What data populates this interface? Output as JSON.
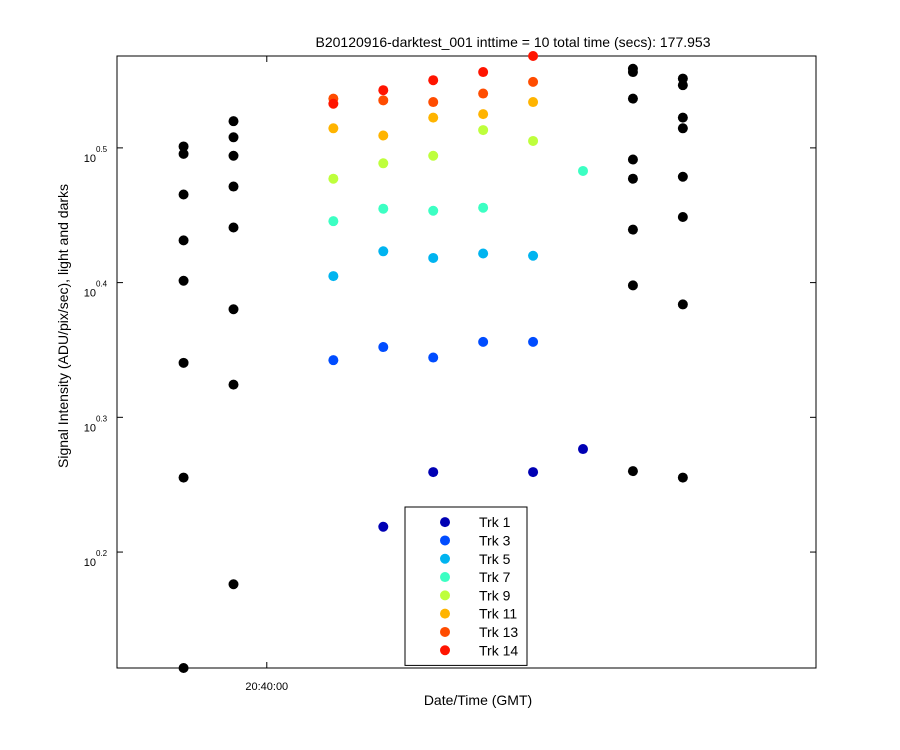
{
  "chart_data": {
    "type": "scatter",
    "title": "B20120916-darktest_001 inttime = 10 total time (secs): 177.953",
    "xlabel": "Date/Time (GMT)",
    "ylabel": "Signal Intensity (ADU/pix/sec), light and darks",
    "yscale": "log",
    "ylim": [
      1.3,
      3.7
    ],
    "xlim": [
      "20:39:33",
      "20:41:39"
    ],
    "x_ticks": [
      {
        "value": "20:40:00",
        "label": "20:40:00"
      }
    ],
    "y_ticks": [
      {
        "value": 1.5849,
        "base": "10",
        "exp": "0.2"
      },
      {
        "value": 1.9953,
        "base": "10",
        "exp": "0.3"
      },
      {
        "value": 2.5119,
        "base": "10",
        "exp": "0.4"
      },
      {
        "value": 3.1623,
        "base": "10",
        "exp": "0.5"
      }
    ],
    "grid": false,
    "legend_position": "bottom-center",
    "series": [
      {
        "name": "Trk 1",
        "color": "#0000b4",
        "points": [
          [
            "20:40:21",
            1.655
          ],
          [
            "20:40:30",
            1.817
          ],
          [
            "20:40:48",
            1.817
          ],
          [
            "20:40:57",
            1.89
          ]
        ]
      },
      {
        "name": "Trk 3",
        "color": "#004cff",
        "points": [
          [
            "20:40:12",
            2.2
          ],
          [
            "20:40:21",
            2.25
          ],
          [
            "20:40:30",
            2.21
          ],
          [
            "20:40:39",
            2.27
          ],
          [
            "20:40:48",
            2.27
          ]
        ]
      },
      {
        "name": "Trk 5",
        "color": "#00b4f0",
        "points": [
          [
            "20:40:12",
            2.54
          ],
          [
            "20:40:21",
            2.65
          ],
          [
            "20:40:30",
            2.62
          ],
          [
            "20:40:39",
            2.64
          ],
          [
            "20:40:48",
            2.63
          ]
        ]
      },
      {
        "name": "Trk 7",
        "color": "#3cffc3",
        "points": [
          [
            "20:40:12",
            2.79
          ],
          [
            "20:40:21",
            2.85
          ],
          [
            "20:40:30",
            2.84
          ],
          [
            "20:40:39",
            2.855
          ],
          [
            "20:40:57",
            3.04
          ]
        ]
      },
      {
        "name": "Trk 9",
        "color": "#beff3c",
        "points": [
          [
            "20:40:12",
            3.0
          ],
          [
            "20:40:21",
            3.08
          ],
          [
            "20:40:30",
            3.12
          ],
          [
            "20:40:39",
            3.26
          ],
          [
            "20:40:48",
            3.2
          ]
        ]
      },
      {
        "name": "Trk 11",
        "color": "#ffb400",
        "points": [
          [
            "20:40:12",
            3.27
          ],
          [
            "20:40:21",
            3.23
          ],
          [
            "20:40:30",
            3.33
          ],
          [
            "20:40:39",
            3.35
          ],
          [
            "20:40:48",
            3.42
          ]
        ]
      },
      {
        "name": "Trk 13",
        "color": "#ff4c00",
        "points": [
          [
            "20:40:12",
            3.44
          ],
          [
            "20:40:21",
            3.43
          ],
          [
            "20:40:30",
            3.42
          ],
          [
            "20:40:39",
            3.47
          ],
          [
            "20:40:48",
            3.54
          ]
        ]
      },
      {
        "name": "Trk 14",
        "color": "#ff1400",
        "points": [
          [
            "20:40:12",
            3.41
          ],
          [
            "20:40:21",
            3.49
          ],
          [
            "20:40:30",
            3.55
          ],
          [
            "20:40:39",
            3.6
          ],
          [
            "20:40:48",
            3.7
          ]
        ]
      },
      {
        "name": "",
        "color": "#000000",
        "points": [
          [
            "20:39:45",
            1.3
          ],
          [
            "20:39:45",
            1.8
          ],
          [
            "20:39:45",
            2.19
          ],
          [
            "20:39:45",
            2.52
          ],
          [
            "20:39:45",
            2.7
          ],
          [
            "20:39:45",
            2.92
          ],
          [
            "20:39:45",
            3.13
          ],
          [
            "20:39:45",
            3.17
          ],
          [
            "20:39:54",
            1.5
          ],
          [
            "20:39:54",
            2.11
          ],
          [
            "20:39:54",
            2.4
          ],
          [
            "20:39:54",
            2.76
          ],
          [
            "20:39:54",
            2.96
          ],
          [
            "20:39:54",
            3.12
          ],
          [
            "20:39:54",
            3.22
          ],
          [
            "20:39:54",
            3.31
          ],
          [
            "20:41:06",
            1.82
          ],
          [
            "20:41:06",
            2.5
          ],
          [
            "20:41:06",
            2.75
          ],
          [
            "20:41:06",
            3.0
          ],
          [
            "20:41:06",
            3.1
          ],
          [
            "20:41:06",
            3.44
          ],
          [
            "20:41:06",
            3.62
          ],
          [
            "20:41:06",
            3.6
          ],
          [
            "20:41:15",
            1.8
          ],
          [
            "20:41:15",
            2.42
          ],
          [
            "20:41:15",
            2.81
          ],
          [
            "20:41:15",
            3.01
          ],
          [
            "20:41:15",
            3.27
          ],
          [
            "20:41:15",
            3.33
          ],
          [
            "20:41:15",
            3.52
          ],
          [
            "20:41:15",
            3.56
          ]
        ]
      }
    ]
  }
}
